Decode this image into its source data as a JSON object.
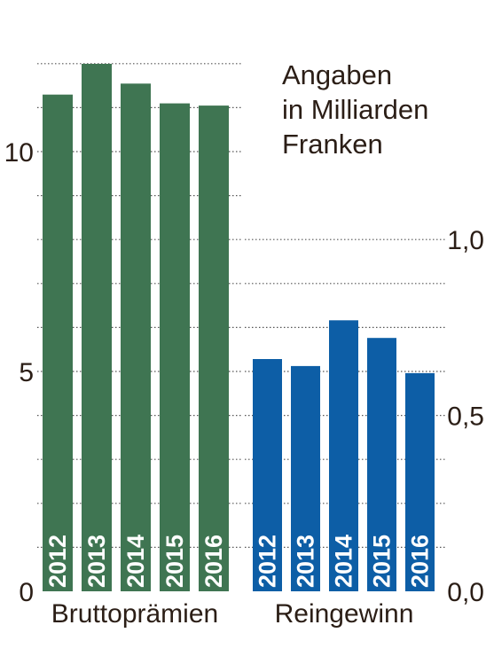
{
  "note_lines": [
    "Angaben",
    "in Milliarden",
    "Franken"
  ],
  "chart_data": [
    {
      "type": "bar",
      "category_label": "Bruttoprämien",
      "categories": [
        "2012",
        "2013",
        "2014",
        "2015",
        "2016"
      ],
      "values": [
        11.3,
        12.0,
        11.55,
        11.1,
        11.05
      ],
      "ylim": [
        0,
        12
      ],
      "yticks": [
        0,
        5,
        10
      ],
      "ytick_labels": [
        "0",
        "5",
        "10"
      ],
      "ytick_side": "left",
      "grid": true,
      "grid_style": "dotted",
      "color": "#3f7552"
    },
    {
      "type": "bar",
      "category_label": "Reingewinn",
      "categories": [
        "2012",
        "2013",
        "2014",
        "2015",
        "2016"
      ],
      "values": [
        0.66,
        0.64,
        0.77,
        0.72,
        0.62
      ],
      "ylim": [
        0,
        1.0
      ],
      "yticks": [
        0,
        0.5,
        1.0
      ],
      "ytick_labels": [
        "0,0",
        "0,5",
        "1,0"
      ],
      "ytick_side": "right",
      "grid": true,
      "grid_style": "dotted",
      "color": "#0d5ea6"
    }
  ]
}
